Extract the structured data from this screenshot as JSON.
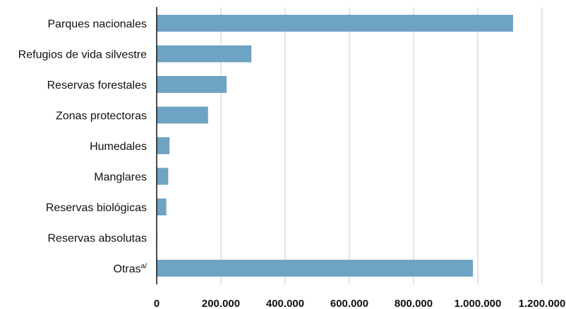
{
  "chart_data": {
    "type": "bar",
    "orientation": "horizontal",
    "categories": [
      "Parques nacionales",
      "Refugios de vida silvestre",
      "Reservas forestales",
      "Zonas protectoras",
      "Humedales",
      "Manglares",
      "Reservas biológicas",
      "Reservas absolutas",
      "Otras"
    ],
    "category_superscripts": [
      "",
      "",
      "",
      "",
      "",
      "",
      "",
      "",
      "a/"
    ],
    "values": [
      1110000,
      295000,
      218000,
      160000,
      40000,
      36000,
      30000,
      1500,
      985000
    ],
    "xlim": [
      0,
      1200000
    ],
    "xticks": [
      0,
      200000,
      400000,
      600000,
      800000,
      1000000,
      1200000
    ],
    "xtick_labels": [
      "0",
      "200.000",
      "400.000",
      "600.000",
      "800.000",
      "1.000.000",
      "1.200.000"
    ],
    "title": "",
    "xlabel": "",
    "ylabel": "",
    "grid": "vertical",
    "legend": "none",
    "colors": {
      "bar": "#6fa3c3",
      "grid": "#c8c8c8",
      "axis": "#111111"
    }
  }
}
